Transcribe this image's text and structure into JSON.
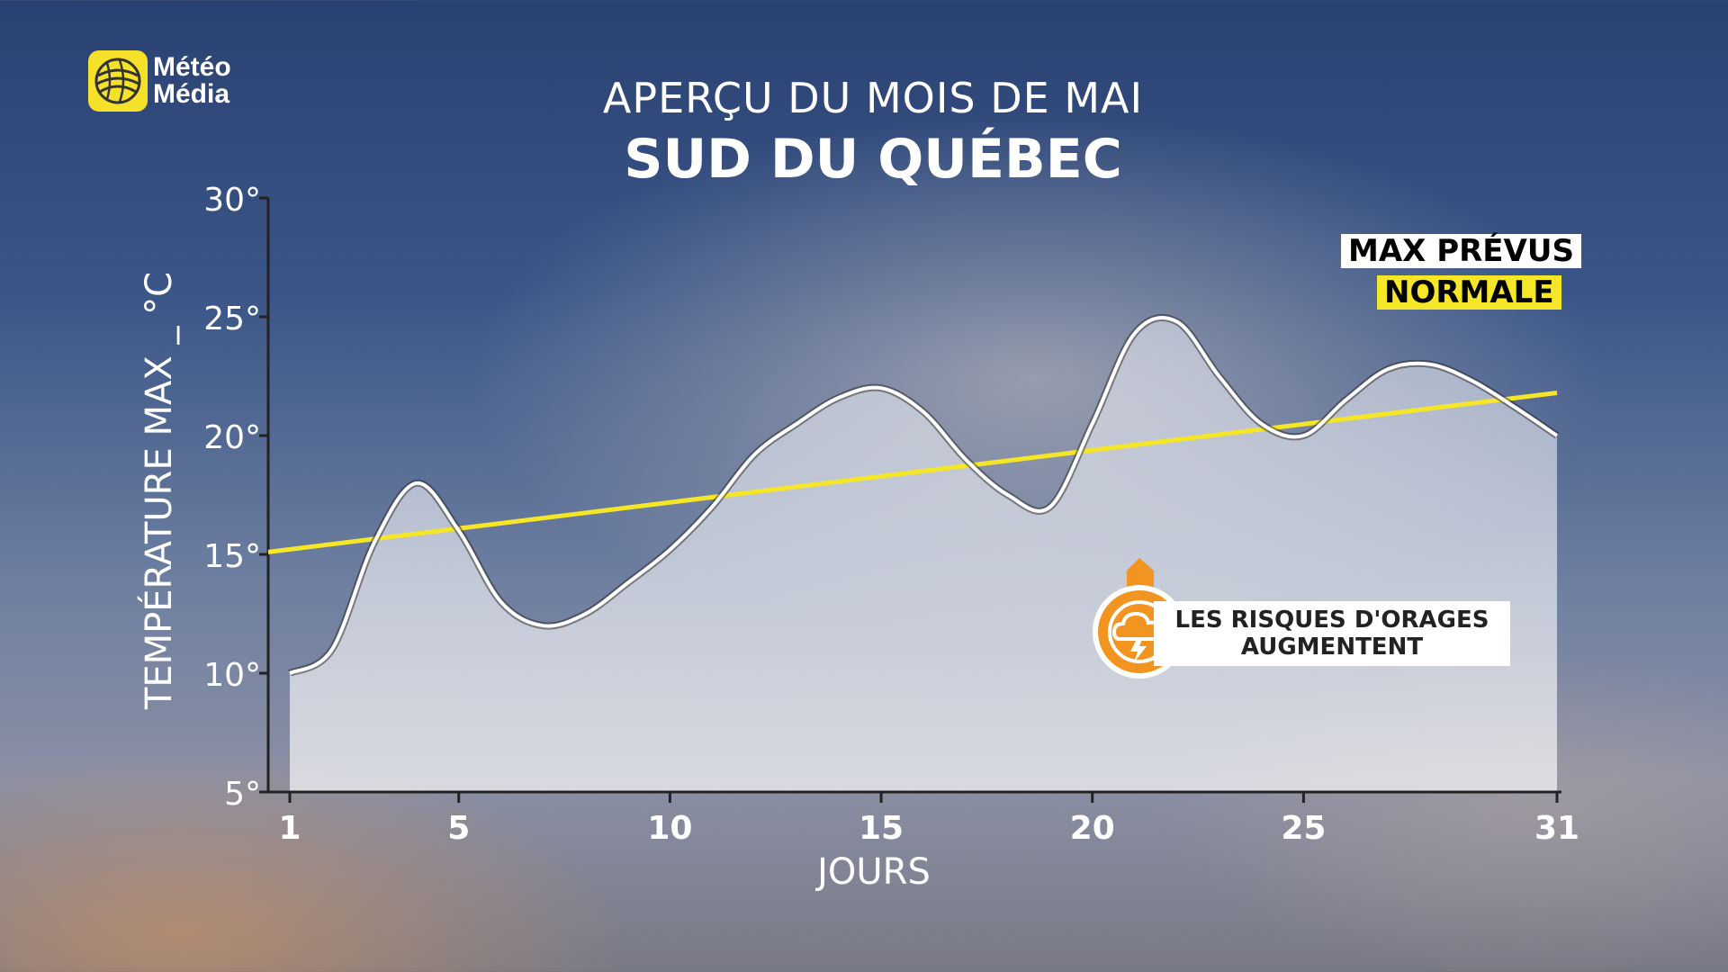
{
  "brand": {
    "line1": "Météo",
    "line2": "Média"
  },
  "header": {
    "title": "APERÇU DU MOIS DE MAI",
    "subtitle": "SUD DU QUÉBEC"
  },
  "legend": {
    "max_label": "MAX PRÉVUS",
    "normal_label": "NORMALE"
  },
  "callout": {
    "line1": "LES RISQUES D'ORAGES",
    "line2": "AUGMENTENT",
    "icon": "thunderstorm-icon"
  },
  "colors": {
    "forecast_line": "#ffffff",
    "normal_line": "#f5e628",
    "callout_orange": "#f29420"
  },
  "chart_data": {
    "type": "line",
    "title": "APERÇU DU MOIS DE MAI",
    "xlabel": "JOURS",
    "ylabel": "TEMPÉRATURE MAX _ °C",
    "xlim": [
      1,
      31
    ],
    "ylim": [
      5,
      30
    ],
    "x_ticks": [
      1,
      5,
      10,
      15,
      20,
      25,
      31
    ],
    "y_ticks": [
      5,
      10,
      15,
      20,
      25,
      30
    ],
    "y_tick_labels": [
      "5°",
      "10°",
      "15°",
      "20°",
      "25°",
      "30°"
    ],
    "series": [
      {
        "name": "MAX PRÉVUS",
        "x": [
          1,
          2,
          3,
          4,
          5,
          6,
          7,
          8,
          9,
          10,
          11,
          12,
          13,
          14,
          15,
          16,
          17,
          18,
          19,
          20,
          21,
          22,
          23,
          24,
          25,
          26,
          27,
          28,
          29,
          30,
          31
        ],
        "values": [
          10,
          11,
          15.5,
          18,
          16,
          13,
          12,
          12.5,
          13.8,
          15.2,
          17,
          19.2,
          20.5,
          21.6,
          22,
          21,
          19,
          17.5,
          17,
          20.5,
          24.3,
          24.8,
          22.5,
          20.5,
          20,
          21.5,
          22.8,
          23,
          22.3,
          21.2,
          20
        ]
      },
      {
        "name": "NORMALE",
        "x": [
          1,
          31
        ],
        "values": [
          15.2,
          21.8
        ]
      }
    ]
  }
}
